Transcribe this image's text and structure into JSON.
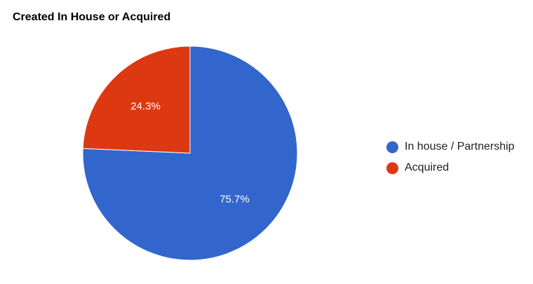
{
  "chart_data": {
    "type": "pie",
    "title": "Created In House or Acquired",
    "start_angle_deg": 0,
    "direction": "clockwise",
    "legend_position": "right",
    "slices": [
      {
        "label": "In house / Partnership",
        "value": 75.7,
        "display": "75.7%",
        "color": "#3366cc"
      },
      {
        "label": "Acquired",
        "value": 24.3,
        "display": "24.3%",
        "color": "#dc3912"
      }
    ]
  }
}
